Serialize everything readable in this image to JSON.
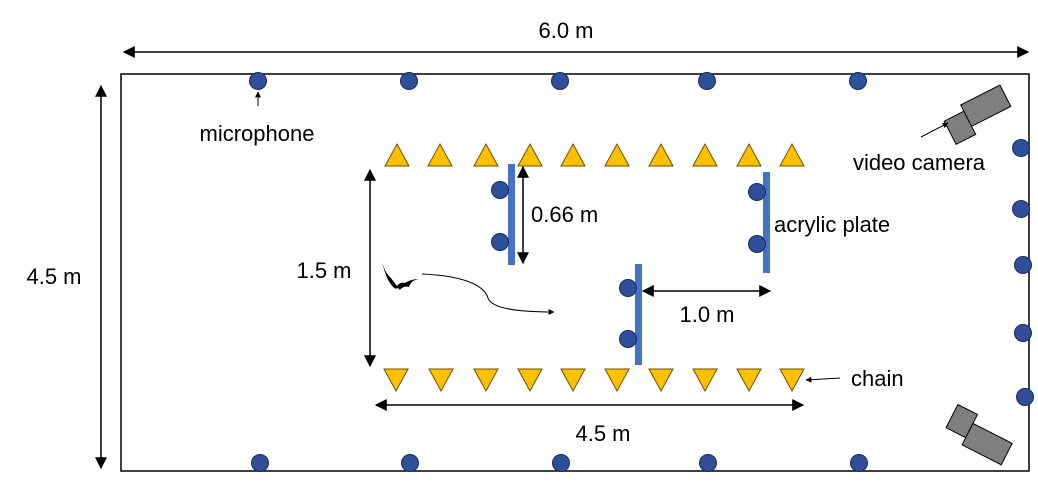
{
  "labels": {
    "width_total": "6.0 m",
    "height_total": "4.5 m",
    "microphone": "microphone",
    "video_camera": "video camera",
    "acrylic_plate": "acrylic plate",
    "plate_length": "0.66 m",
    "flight_height": "1.5 m",
    "plate_gap": "1.0 m",
    "chain": "chain",
    "chain_length": "4.5 m"
  },
  "counts": {
    "top_microphones": 5,
    "bottom_microphones": 5,
    "right_microphones": 6,
    "chains_per_row": 10,
    "acrylic_plates": 3,
    "video_cameras": 2
  },
  "colors": {
    "microphone_fill": "#2f4f9a",
    "microphone_stroke": "#1a2b5a",
    "chain_fill": "#ffc000",
    "chain_stroke": "#6b5000",
    "plate": "#4472c4",
    "camera": "#7f7f7f",
    "line": "#000000"
  },
  "icons": [
    "microphone-icon",
    "chain-icon",
    "acrylic-plate-icon",
    "video-camera-icon",
    "bat-icon"
  ]
}
